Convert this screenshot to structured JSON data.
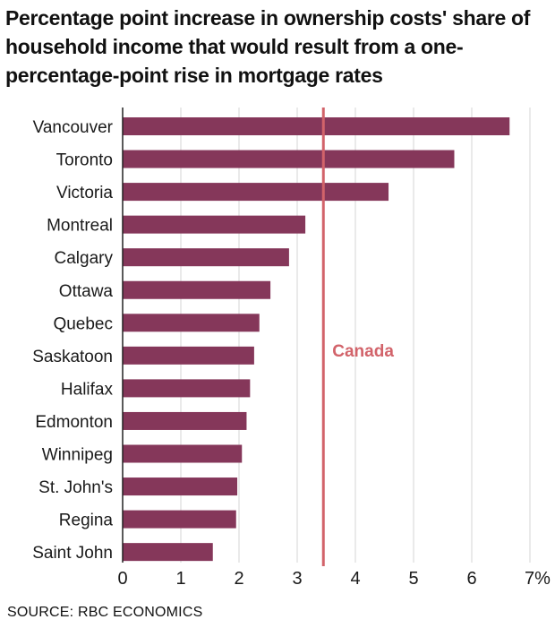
{
  "chart_data": {
    "type": "bar",
    "orientation": "horizontal",
    "title": "Percentage point increase in ownership costs' share of household income that would result from a one-percentage-point rise in mortgage rates",
    "categories": [
      "Vancouver",
      "Toronto",
      "Victoria",
      "Montreal",
      "Calgary",
      "Ottawa",
      "Quebec",
      "Saskatoon",
      "Halifax",
      "Edmonton",
      "Winnipeg",
      "St. John's",
      "Regina",
      "Saint John"
    ],
    "values": [
      6.65,
      5.7,
      4.57,
      3.14,
      2.86,
      2.54,
      2.35,
      2.26,
      2.19,
      2.13,
      2.05,
      1.97,
      1.95,
      1.55
    ],
    "xlim": [
      0,
      7
    ],
    "x_ticks": [
      "0",
      "1",
      "2",
      "3",
      "4",
      "5",
      "6",
      "7%"
    ],
    "grid": "vertical",
    "bar_color": "#85375a",
    "reference_line": {
      "label": "Canada",
      "value": 3.45,
      "color": "#d2636a"
    },
    "source": "SOURCE: RBC ECONOMICS"
  }
}
